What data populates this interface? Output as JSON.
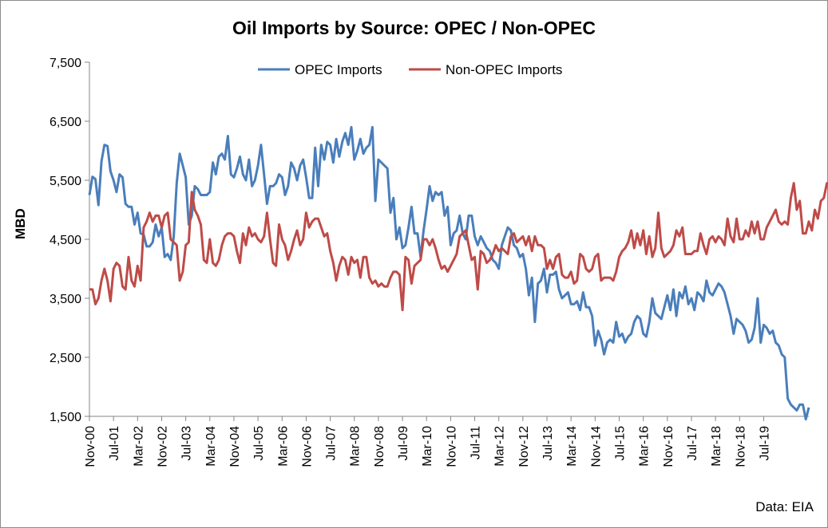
{
  "chart_data": {
    "type": "line",
    "title": "Oil Imports by Source: OPEC / Non-OPEC",
    "xlabel": "",
    "ylabel": "MBD",
    "source_note": "Data: EIA",
    "ylim": [
      1500,
      7500
    ],
    "yticks": [
      "1,500",
      "2,500",
      "3,500",
      "4,500",
      "5,500",
      "6,500",
      "7,500"
    ],
    "ytick_values": [
      1500,
      2500,
      3500,
      4500,
      5500,
      6500,
      7500
    ],
    "x_tick_labels": [
      "Nov-00",
      "Jul-01",
      "Mar-02",
      "Nov-02",
      "Jul-03",
      "Mar-04",
      "Nov-04",
      "Jul-05",
      "Mar-06",
      "Nov-06",
      "Jul-07",
      "Mar-08",
      "Nov-08",
      "Jul-09",
      "Mar-10",
      "Nov-10",
      "Jul-11",
      "Mar-12",
      "Nov-12",
      "Jul-13",
      "Mar-14",
      "Nov-14",
      "Jul-15",
      "Mar-16",
      "Nov-16",
      "Jul-17",
      "Mar-18",
      "Nov-18",
      "Jul-19"
    ],
    "x_start": "Nov-00",
    "x_end": "Jul-19",
    "legend_position": "top-center",
    "grid": {
      "horizontal": false,
      "vertical": false
    },
    "series": [
      {
        "name": "OPEC Imports",
        "color": "#4a7ebb",
        "values": [
          5250,
          5560,
          5520,
          5080,
          5820,
          6100,
          6080,
          5650,
          5500,
          5300,
          5600,
          5550,
          5100,
          5050,
          5050,
          4750,
          4950,
          4600,
          4580,
          4380,
          4380,
          4450,
          4750,
          4550,
          4700,
          4200,
          4250,
          4150,
          4550,
          5450,
          5950,
          5750,
          5550,
          4750,
          4900,
          5400,
          5350,
          5250,
          5250,
          5250,
          5300,
          5800,
          5600,
          5900,
          5950,
          5850,
          6250,
          5600,
          5550,
          5700,
          5900,
          5600,
          5500,
          5850,
          5400,
          5500,
          5750,
          6100,
          5600,
          5100,
          5400,
          5400,
          5450,
          5600,
          5550,
          5250,
          5400,
          5800,
          5700,
          5500,
          5750,
          5850,
          5550,
          5200,
          5200,
          6050,
          5400,
          6100,
          5850,
          6150,
          6100,
          5800,
          6200,
          5900,
          6150,
          6300,
          6100,
          6400,
          5850,
          6000,
          6200,
          5950,
          6050,
          6100,
          6400,
          5150,
          5850,
          5800,
          5750,
          5700,
          4950,
          5200,
          4500,
          4700,
          4350,
          4400,
          4700,
          5050,
          4600,
          4600,
          4200,
          4650,
          5000,
          5400,
          5150,
          5300,
          5250,
          5300,
          4900,
          5050,
          4400,
          4600,
          4650,
          4900,
          4600,
          4500,
          4900,
          4900,
          4550,
          4400,
          4550,
          4450,
          4350,
          4300,
          4150,
          4100,
          4000,
          4400,
          4550,
          4700,
          4650,
          4400,
          4350,
          4200,
          4250,
          4000,
          3550,
          3850,
          3100,
          3750,
          3800,
          4000,
          3600,
          3900,
          3900,
          3950,
          3650,
          3500,
          3550,
          3600,
          3400,
          3400,
          3450,
          3300,
          3600,
          3350,
          3350,
          3200,
          2700,
          2950,
          2800,
          2550,
          2750,
          2800,
          2750,
          3100,
          2850,
          2900,
          2750,
          2850,
          2900,
          3100,
          3200,
          3150,
          2900,
          2850,
          3100,
          3500,
          3250,
          3200,
          3150,
          3350,
          3550,
          3300,
          3650,
          3200,
          3600,
          3500,
          3700,
          3400,
          3500,
          3300,
          3600,
          3550,
          3450,
          3800,
          3600,
          3550,
          3650,
          3750,
          3700,
          3600,
          3400,
          3200,
          2900,
          3150,
          3100,
          3050,
          2950,
          2750,
          2800,
          3000,
          3500,
          2750,
          3050,
          3000,
          2900,
          2950,
          2750,
          2700,
          2550,
          2500,
          1800,
          1700,
          1650,
          1600,
          1700,
          1700,
          1450,
          1650
        ]
      },
      {
        "name": "Non-OPEC Imports",
        "color": "#be4b48",
        "values": [
          3650,
          3650,
          3400,
          3500,
          3800,
          4000,
          3800,
          3450,
          4000,
          4100,
          4050,
          3700,
          3650,
          4200,
          3800,
          3700,
          4050,
          3800,
          4700,
          4800,
          4950,
          4800,
          4900,
          4900,
          4700,
          4900,
          4950,
          4500,
          4450,
          4400,
          3800,
          3950,
          4400,
          4450,
          5300,
          5000,
          4900,
          4750,
          4150,
          4100,
          4500,
          4100,
          4050,
          4150,
          4400,
          4550,
          4600,
          4600,
          4550,
          4300,
          4100,
          4600,
          4400,
          4700,
          4550,
          4600,
          4500,
          4450,
          4550,
          4950,
          4500,
          4100,
          4050,
          4750,
          4500,
          4400,
          4150,
          4300,
          4500,
          4650,
          4400,
          4500,
          4950,
          4700,
          4800,
          4850,
          4850,
          4700,
          4550,
          4600,
          4300,
          4100,
          3800,
          4050,
          4200,
          4150,
          3900,
          4200,
          4100,
          4150,
          3850,
          4200,
          4200,
          3850,
          3750,
          3800,
          3700,
          3750,
          3700,
          3700,
          3850,
          3950,
          3950,
          3900,
          3300,
          4200,
          4150,
          3750,
          4050,
          4100,
          4150,
          4500,
          4500,
          4400,
          4500,
          4350,
          4150,
          4000,
          4050,
          3950,
          4050,
          4150,
          4250,
          4550,
          4600,
          4650,
          4400,
          4150,
          4200,
          3650,
          4300,
          4250,
          4100,
          4150,
          4250,
          4400,
          4300,
          4350,
          4300,
          4250,
          4550,
          4600,
          4450,
          4500,
          4550,
          4400,
          4550,
          4300,
          4550,
          4400,
          4400,
          4350,
          4000,
          4150,
          4000,
          4200,
          4250,
          3900,
          3850,
          3850,
          3950,
          3750,
          3800,
          4250,
          4200,
          4000,
          3950,
          4000,
          4200,
          4250,
          3800,
          3850,
          3850,
          3850,
          3800,
          3950,
          4200,
          4300,
          4350,
          4450,
          4650,
          4350,
          4600,
          4400,
          4650,
          4250,
          4550,
          4200,
          4350,
          4950,
          4350,
          4200,
          4250,
          4300,
          4400,
          4650,
          4550,
          4700,
          4250,
          4250,
          4250,
          4300,
          4300,
          4600,
          4400,
          4250,
          4500,
          4550,
          4450,
          4550,
          4500,
          4400,
          4850,
          4550,
          4450,
          4850,
          4500,
          4500,
          4650,
          4550,
          4800,
          4600,
          4800,
          4500,
          4500,
          4700,
          4800,
          4900,
          5000,
          4800,
          4750,
          4800,
          4750,
          5200,
          5450,
          5000,
          5150,
          4600,
          4600,
          4800,
          4650,
          5000,
          4850,
          5150,
          5200,
          5450,
          5450,
          5450,
          5500,
          5300
        ]
      }
    ]
  }
}
